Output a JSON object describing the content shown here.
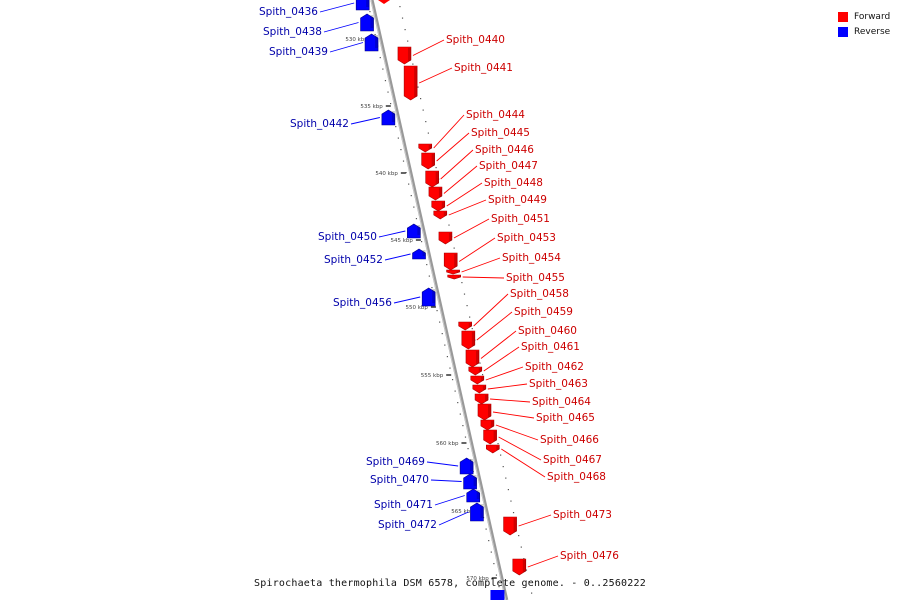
{
  "caption": "Spirochaeta thermophila DSM 6578, complete genome. - 0..2560222",
  "legend": [
    {
      "label": "Forward",
      "color": "#ff0000"
    },
    {
      "label": "Reverse",
      "color": "#0000ff"
    }
  ],
  "colors": {
    "forward": "#ff0000",
    "reverse": "#0000ff",
    "backbone": "#888888",
    "forward_label": "#cc0000",
    "reverse_label": "#0000aa"
  },
  "scale": {
    "unit": "kbp",
    "major_ticks_kbp": [
      530,
      535,
      540,
      545,
      550,
      555,
      560,
      565,
      570
    ]
  },
  "genes": [
    {
      "name": "Spith_0436",
      "strand": "reverse"
    },
    {
      "name": "Spith_0438",
      "strand": "reverse"
    },
    {
      "name": "Spith_0439",
      "strand": "reverse"
    },
    {
      "name": "Spith_0440",
      "strand": "forward"
    },
    {
      "name": "Spith_0441",
      "strand": "forward"
    },
    {
      "name": "Spith_0442",
      "strand": "reverse"
    },
    {
      "name": "Spith_0444",
      "strand": "forward"
    },
    {
      "name": "Spith_0445",
      "strand": "forward"
    },
    {
      "name": "Spith_0446",
      "strand": "forward"
    },
    {
      "name": "Spith_0447",
      "strand": "forward"
    },
    {
      "name": "Spith_0448",
      "strand": "forward"
    },
    {
      "name": "Spith_0449",
      "strand": "forward"
    },
    {
      "name": "Spith_0450",
      "strand": "reverse"
    },
    {
      "name": "Spith_0451",
      "strand": "forward"
    },
    {
      "name": "Spith_0452",
      "strand": "reverse"
    },
    {
      "name": "Spith_0453",
      "strand": "forward"
    },
    {
      "name": "Spith_0454",
      "strand": "forward"
    },
    {
      "name": "Spith_0455",
      "strand": "forward"
    },
    {
      "name": "Spith_0456",
      "strand": "reverse"
    },
    {
      "name": "Spith_0458",
      "strand": "forward"
    },
    {
      "name": "Spith_0459",
      "strand": "forward"
    },
    {
      "name": "Spith_0460",
      "strand": "forward"
    },
    {
      "name": "Spith_0461",
      "strand": "forward"
    },
    {
      "name": "Spith_0462",
      "strand": "forward"
    },
    {
      "name": "Spith_0463",
      "strand": "forward"
    },
    {
      "name": "Spith_0464",
      "strand": "forward"
    },
    {
      "name": "Spith_0465",
      "strand": "forward"
    },
    {
      "name": "Spith_0466",
      "strand": "forward"
    },
    {
      "name": "Spith_0467",
      "strand": "forward"
    },
    {
      "name": "Spith_0468",
      "strand": "forward"
    },
    {
      "name": "Spith_0469",
      "strand": "reverse"
    },
    {
      "name": "Spith_0470",
      "strand": "reverse"
    },
    {
      "name": "Spith_0471",
      "strand": "reverse"
    },
    {
      "name": "Spith_0472",
      "strand": "reverse"
    },
    {
      "name": "Spith_0473",
      "strand": "forward"
    },
    {
      "name": "Spith_0476",
      "strand": "forward"
    }
  ]
}
